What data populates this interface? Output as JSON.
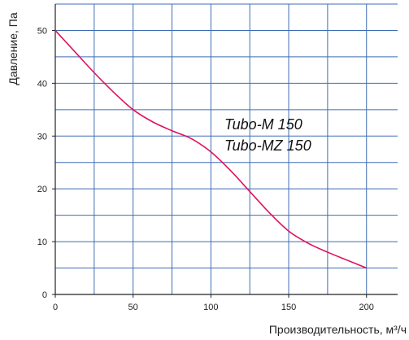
{
  "chart_data": {
    "type": "line",
    "title": "",
    "xlabel": "Производительность, м³/ч",
    "ylabel": "Давление, Па",
    "xlim": [
      0,
      220
    ],
    "ylim": [
      0,
      55
    ],
    "x_ticks": [
      "0",
      "50",
      "100",
      "150",
      "200"
    ],
    "y_ticks": [
      "0",
      "10",
      "20",
      "30",
      "40",
      "50"
    ],
    "grid": true,
    "annotations": [
      "Tubo-M 150",
      "Tubo-MZ 150"
    ],
    "series": [
      {
        "color": "#e0115f",
        "x": [
          0,
          12.5,
          25,
          37.5,
          50,
          62.5,
          75,
          87.5,
          100,
          112.5,
          125,
          137.5,
          150,
          162.5,
          175,
          187.5,
          200
        ],
        "y": [
          50,
          46,
          42,
          38.3,
          35,
          32.7,
          31,
          29.5,
          27,
          23.5,
          19.5,
          15.5,
          12,
          9.7,
          8,
          6.5,
          5
        ]
      }
    ]
  },
  "colors": {
    "grid": "#3f6db5",
    "axis": "#222222",
    "curve": "#e0115f"
  }
}
